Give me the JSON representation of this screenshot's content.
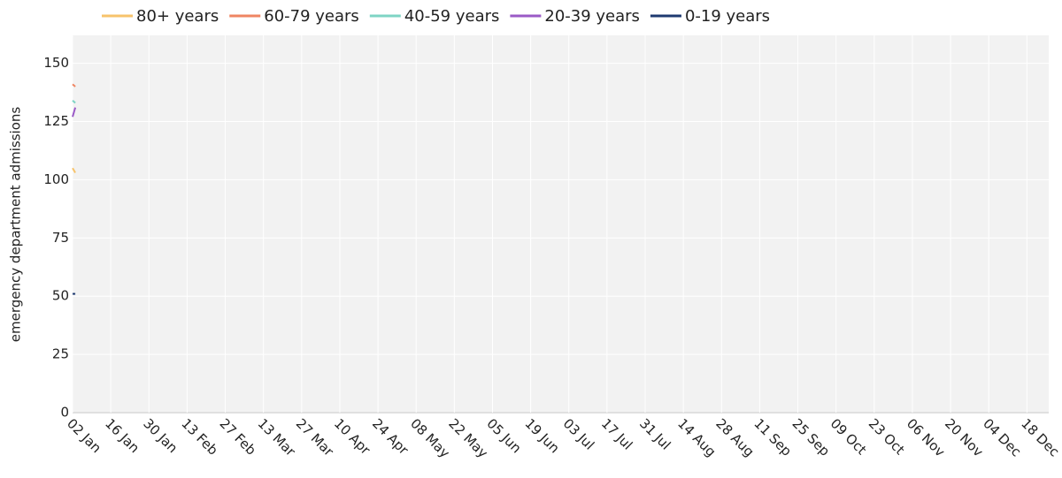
{
  "chart_data": {
    "type": "line",
    "y_label": "emergency department admissions",
    "x": [
      0,
      1
    ],
    "xlim": [
      0,
      358
    ],
    "xticks": [
      {
        "value": 0,
        "label": "02 Jan"
      },
      {
        "value": 14,
        "label": "16 Jan"
      },
      {
        "value": 28,
        "label": "30 Jan"
      },
      {
        "value": 42,
        "label": "13 Feb"
      },
      {
        "value": 56,
        "label": "27 Feb"
      },
      {
        "value": 70,
        "label": "13 Mar"
      },
      {
        "value": 84,
        "label": "27 Mar"
      },
      {
        "value": 98,
        "label": "10 Apr"
      },
      {
        "value": 112,
        "label": "24 Apr"
      },
      {
        "value": 126,
        "label": "08 May"
      },
      {
        "value": 140,
        "label": "22 May"
      },
      {
        "value": 154,
        "label": "05 Jun"
      },
      {
        "value": 168,
        "label": "19 Jun"
      },
      {
        "value": 182,
        "label": "03 Jul"
      },
      {
        "value": 196,
        "label": "17 Jul"
      },
      {
        "value": 210,
        "label": "31 Jul"
      },
      {
        "value": 224,
        "label": "14 Aug"
      },
      {
        "value": 238,
        "label": "28 Aug"
      },
      {
        "value": 252,
        "label": "11 Sep"
      },
      {
        "value": 266,
        "label": "25 Sep"
      },
      {
        "value": 280,
        "label": "09 Oct"
      },
      {
        "value": 294,
        "label": "23 Oct"
      },
      {
        "value": 308,
        "label": "06 Nov"
      },
      {
        "value": 322,
        "label": "20 Nov"
      },
      {
        "value": 336,
        "label": "04 Dec"
      },
      {
        "value": 350,
        "label": "18 Dec"
      }
    ],
    "ylim": [
      0,
      162
    ],
    "yticks": [
      0,
      25,
      50,
      75,
      100,
      125,
      150
    ],
    "grid": true,
    "legend": "top",
    "series": [
      {
        "name": "80+ years",
        "color": "#f7c36b",
        "values": [
          105,
          103
        ]
      },
      {
        "name": "60-79 years",
        "color": "#ef8562",
        "values": [
          141,
          140
        ]
      },
      {
        "name": "40-59 years",
        "color": "#7ed4c4",
        "values": [
          134,
          133
        ]
      },
      {
        "name": "20-39 years",
        "color": "#9a5ac6",
        "values": [
          127,
          131
        ]
      },
      {
        "name": "0-19 years",
        "color": "#1e3a70",
        "values": [
          51,
          51
        ]
      }
    ]
  }
}
